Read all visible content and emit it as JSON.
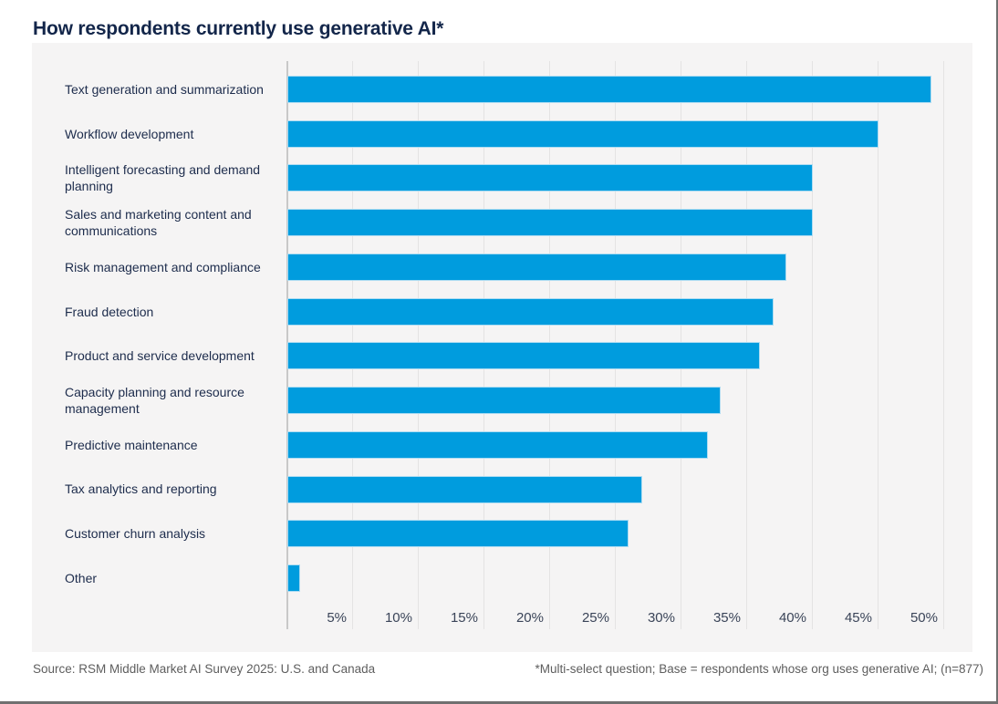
{
  "page": {
    "title": "How respondents currently use generative AI*"
  },
  "footer": {
    "source": "Source: RSM Middle Market AI Survey 2025: U.S. and Canada",
    "note": "*Multi-select question; Base = respondents whose org uses generative AI; (n=877)"
  },
  "colors": {
    "accent-bar": "#009CDE",
    "bar-outline": "#AEDCF2",
    "title-text": "#13264A",
    "panel-bg": "#F5F4F4",
    "gridline": "#E4E3E3",
    "axis-line": "#C8C8C8",
    "category-text": "#1D2C4C",
    "tick-text": "#3A4458",
    "footer-text": "#5E5E5E",
    "frame": "#707070"
  },
  "chart_data": {
    "type": "bar",
    "orientation": "horizontal",
    "title": "How respondents currently use generative AI*",
    "unit": "percent",
    "categories": [
      "Text generation and summarization",
      "Workflow development",
      "Intelligent forecasting and demand planning",
      "Sales and marketing content and communications",
      "Risk management and compliance",
      "Fraud detection",
      "Product and service development",
      "Capacity planning and resource management",
      "Predictive maintenance",
      "Tax analytics and reporting",
      "Customer churn analysis",
      "Other"
    ],
    "values": [
      49,
      45,
      40,
      40,
      38,
      37,
      36,
      33,
      32,
      27,
      26,
      1
    ],
    "x_tick_values": [
      5,
      10,
      15,
      20,
      25,
      30,
      35,
      40,
      45,
      50
    ],
    "x_tick_labels": [
      "5%",
      "10%",
      "15%",
      "20%",
      "25%",
      "30%",
      "35%",
      "40%",
      "45%",
      "50%"
    ],
    "xlim": [
      0,
      50
    ],
    "grid": "vertical",
    "legend": false
  }
}
